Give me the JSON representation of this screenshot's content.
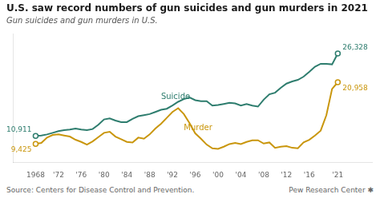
{
  "chart_data": {
    "type": "line",
    "title": "U.S. saw record numbers of gun suicides and gun murders in 2021",
    "subtitle": "Gun suicides and gun murders in U.S.",
    "source": "Source: Centers for Disease Control and Prevention.",
    "credit": "Pew Research Center ✱",
    "x": [
      1968,
      1969,
      1970,
      1971,
      1972,
      1973,
      1974,
      1975,
      1976,
      1977,
      1978,
      1979,
      1980,
      1981,
      1982,
      1983,
      1984,
      1985,
      1986,
      1987,
      1988,
      1989,
      1990,
      1991,
      1992,
      1993,
      1994,
      1995,
      1996,
      1997,
      1998,
      1999,
      2000,
      2001,
      2002,
      2003,
      2004,
      2005,
      2006,
      2007,
      2008,
      2009,
      2010,
      2011,
      2012,
      2013,
      2014,
      2015,
      2016,
      2017,
      2018,
      2019,
      2020,
      2021
    ],
    "series": [
      {
        "name": "Suicide",
        "color": "#2e7d6e",
        "marker": "circle",
        "values": [
          10911,
          11000,
          11200,
          11500,
          11800,
          12000,
          12100,
          12300,
          12100,
          12000,
          12200,
          13000,
          14000,
          14200,
          13800,
          13500,
          13500,
          14100,
          14600,
          14800,
          15000,
          15400,
          15800,
          16000,
          16600,
          17300,
          17800,
          18100,
          17600,
          17400,
          17400,
          16600,
          16700,
          16900,
          17100,
          17000,
          16600,
          16900,
          16600,
          16400,
          17700,
          18700,
          19000,
          19900,
          20700,
          21100,
          21400,
          22000,
          22900,
          23850,
          24400,
          24400,
          24300,
          26328
        ]
      },
      {
        "name": "Murder",
        "color": "#c9960c",
        "marker": "circle",
        "values": [
          9425,
          9600,
          10600,
          11100,
          11200,
          11000,
          10800,
          10200,
          9800,
          9300,
          9900,
          10700,
          11500,
          11700,
          10800,
          10300,
          9800,
          9700,
          10600,
          10400,
          11200,
          12300,
          13200,
          14300,
          15400,
          16100,
          15000,
          13300,
          11400,
          10400,
          9300,
          8600,
          8500,
          8900,
          9400,
          9600,
          9400,
          9800,
          10100,
          10100,
          9500,
          9700,
          8700,
          8900,
          9000,
          8700,
          8600,
          9700,
          10200,
          11000,
          11900,
          14800,
          19700,
          20958
        ]
      }
    ],
    "xlim": [
      1964,
      2027
    ],
    "xticks": [
      1968,
      {
        "value": 1972,
        "label": "'72"
      },
      {
        "value": 1976,
        "label": "'76"
      },
      {
        "value": 1980,
        "label": "'80"
      },
      {
        "value": 1984,
        "label": "'84"
      },
      {
        "value": 1988,
        "label": "'88"
      },
      {
        "value": 1992,
        "label": "'92"
      },
      {
        "value": 1996,
        "label": "'96"
      },
      {
        "value": 2000,
        "label": "'00"
      },
      {
        "value": 2004,
        "label": "'04"
      },
      {
        "value": 2008,
        "label": "'08"
      },
      {
        "value": 2012,
        "label": "'12"
      },
      {
        "value": 2016,
        "label": "'16"
      },
      {
        "value": 2021,
        "label": "'21"
      }
    ],
    "ylim": [
      6000,
      30000
    ],
    "tick_labels": "x",
    "grid": false,
    "annotations": [
      {
        "text": "10,911",
        "x": 1968,
        "y": 10911,
        "color": "#2e7d6e"
      },
      {
        "text": "9,425",
        "x": 1968,
        "y": 9425,
        "color": "#c9960c"
      },
      {
        "text": "26,328",
        "x": 2021,
        "y": 26328,
        "color": "#2e7d6e"
      },
      {
        "text": "20,958",
        "x": 2021,
        "y": 20958,
        "color": "#c9960c"
      },
      {
        "text": "Suicide",
        "x": 1990,
        "y": 17500,
        "color": "#2e7d6e"
      },
      {
        "text": "Murder",
        "x": 1994,
        "y": 13200,
        "color": "#c9960c"
      }
    ]
  }
}
